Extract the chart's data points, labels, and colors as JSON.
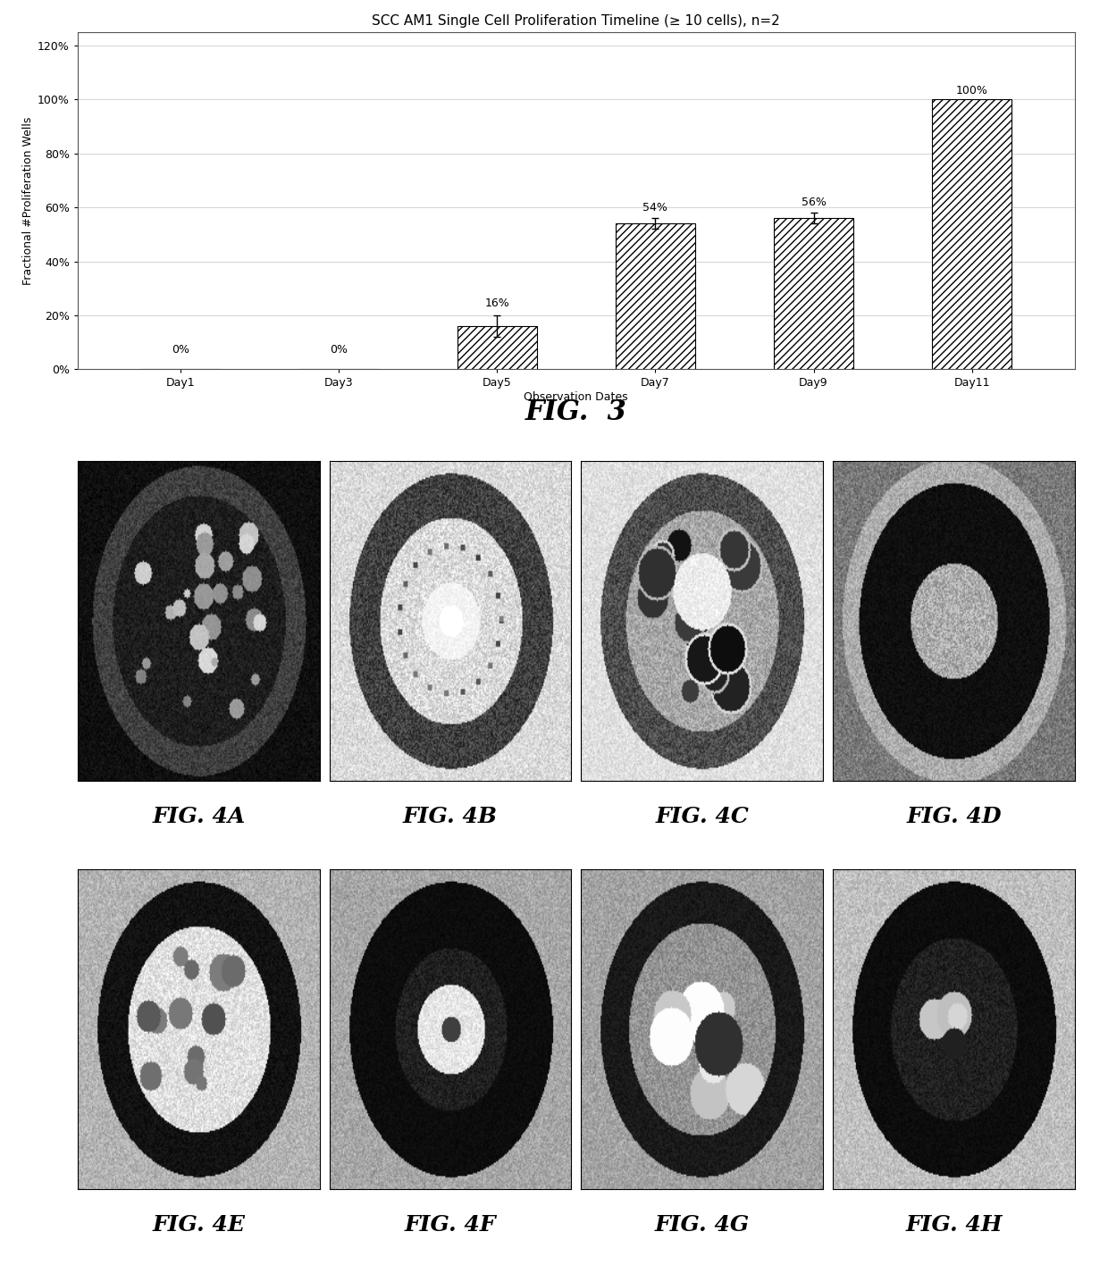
{
  "title": "SCC AM1 Single Cell Proliferation Timeline (≥ 10 cells), n=2",
  "categories": [
    "Day1",
    "Day3",
    "Day5",
    "Day7",
    "Day9",
    "Day11"
  ],
  "values": [
    0,
    0,
    16,
    54,
    56,
    100
  ],
  "error_bars": [
    0,
    0,
    4,
    2,
    2,
    0
  ],
  "labels": [
    "0%",
    "0%",
    "16%",
    "54%",
    "56%",
    "100%"
  ],
  "ylabel": "Fractional #Proliferation Wells",
  "xlabel": "Observation Dates",
  "yticks": [
    0,
    20,
    40,
    60,
    80,
    100,
    120
  ],
  "ytick_labels": [
    "0%",
    "20%",
    "40%",
    "60%",
    "80%",
    "100%",
    "120%"
  ],
  "ylim": [
    0,
    125
  ],
  "hatch_pattern": "////",
  "fig3_label": "FIG.  3",
  "fig4_labels": [
    "FIG. 4A",
    "FIG. 4B",
    "FIG. 4C",
    "FIG. 4D",
    "FIG. 4E",
    "FIG. 4F",
    "FIG. 4G",
    "FIG. 4H"
  ],
  "background_color": "#ffffff",
  "font_size_title": 11,
  "font_size_axis": 9,
  "font_size_tick": 9,
  "font_size_label": 9,
  "font_size_fig3": 22,
  "font_size_fig4": 18
}
